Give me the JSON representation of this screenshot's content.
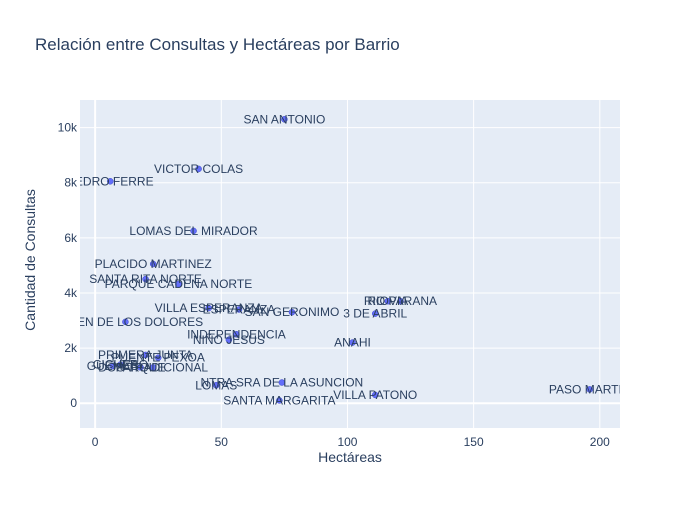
{
  "chart_data": {
    "type": "scatter",
    "title": "Relación entre Consultas y Hectáreas por Barrio",
    "xlabel": "Hectáreas",
    "ylabel": "Cantidad de Consultas",
    "xlim": [
      -6,
      208
    ],
    "ylim": [
      -900,
      11000
    ],
    "x_ticks": [
      0,
      50,
      100,
      150,
      200
    ],
    "x_tick_labels": [
      "0",
      "50",
      "100",
      "150",
      "200"
    ],
    "y_ticks": [
      0,
      2000,
      4000,
      6000,
      8000,
      10000
    ],
    "y_tick_labels": [
      "0",
      "2k",
      "4k",
      "6k",
      "8k",
      "10k"
    ],
    "grid": true,
    "colors": {
      "marker": "#636efa",
      "plot_bg": "#e5ecf6",
      "grid": "#ffffff",
      "text": "#2a3f5f"
    },
    "points": [
      {
        "name": "SAN ANTONIO",
        "x": 75,
        "y": 10300
      },
      {
        "name": "VICTOR COLAS",
        "x": 41,
        "y": 8500
      },
      {
        "name": "PEDRO FERRE",
        "x": 6,
        "y": 8050
      },
      {
        "name": "LOMAS DEL MIRADOR",
        "x": 39,
        "y": 6250
      },
      {
        "name": "PLACIDO MARTINEZ",
        "x": 23,
        "y": 5050
      },
      {
        "name": "SANTA RITA NORTE",
        "x": 20,
        "y": 4500
      },
      {
        "name": "PARQUE CADENA NORTE",
        "x": 33,
        "y": 4320
      },
      {
        "name": "RIO PARANA",
        "x": 121,
        "y": 3700
      },
      {
        "name": "RIOVIA",
        "x": 116,
        "y": 3700
      },
      {
        "name": "VILLA ESPERANZA",
        "x": 45,
        "y": 3450
      },
      {
        "name": "ESPERANZA",
        "x": 57,
        "y": 3400
      },
      {
        "name": "SAN GERONIMO",
        "x": 78,
        "y": 3300
      },
      {
        "name": "3 DE ABRIL",
        "x": 111,
        "y": 3250
      },
      {
        "name": "VIRGEN DE LOS DOLORES",
        "x": 12,
        "y": 2950
      },
      {
        "name": "INDEPENDENCIA",
        "x": 56,
        "y": 2500
      },
      {
        "name": "NIÑO JESUS",
        "x": 53,
        "y": 2300
      },
      {
        "name": "ANAHI",
        "x": 102,
        "y": 2200
      },
      {
        "name": "PRIMERA JUNTA",
        "x": 20,
        "y": 1750
      },
      {
        "name": "PUENTE PEXOA",
        "x": 25,
        "y": 1650
      },
      {
        "name": "CICHERO",
        "x": 10,
        "y": 1400
      },
      {
        "name": "GUEMES",
        "x": 7,
        "y": 1350
      },
      {
        "name": "PARQUE",
        "x": 18,
        "y": 1300
      },
      {
        "name": "DOS TRADICIONAL",
        "x": 23,
        "y": 1300
      },
      {
        "name": "NTRA SRA DE LA ASUNCION",
        "x": 74,
        "y": 750
      },
      {
        "name": "LOMAS",
        "x": 48,
        "y": 650
      },
      {
        "name": "PASO MARTIN",
        "x": 196,
        "y": 500
      },
      {
        "name": "VILLA PATONO",
        "x": 111,
        "y": 300
      },
      {
        "name": "SANTA MARGARITA",
        "x": 73,
        "y": 100
      }
    ]
  }
}
